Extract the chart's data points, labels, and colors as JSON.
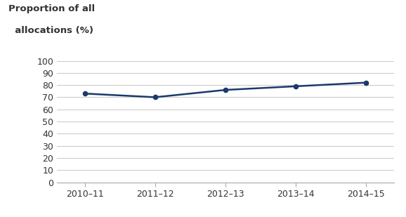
{
  "x_labels": [
    "2010–11",
    "2011–12",
    "2012–13",
    "2013–14",
    "2014–15"
  ],
  "y_values": [
    73,
    70,
    76,
    79,
    82
  ],
  "line_color": "#1b3a6b",
  "marker": "o",
  "marker_size": 4.5,
  "ylabel_line1": "Proportion of all",
  "ylabel_line2": "  allocations (%)",
  "ylim": [
    0,
    100
  ],
  "yticks": [
    0,
    10,
    20,
    30,
    40,
    50,
    60,
    70,
    80,
    90,
    100
  ],
  "grid_color": "#cccccc",
  "background_color": "#ffffff",
  "ylabel_fontsize": 9.5,
  "tick_fontsize": 9,
  "text_color": "#333333"
}
